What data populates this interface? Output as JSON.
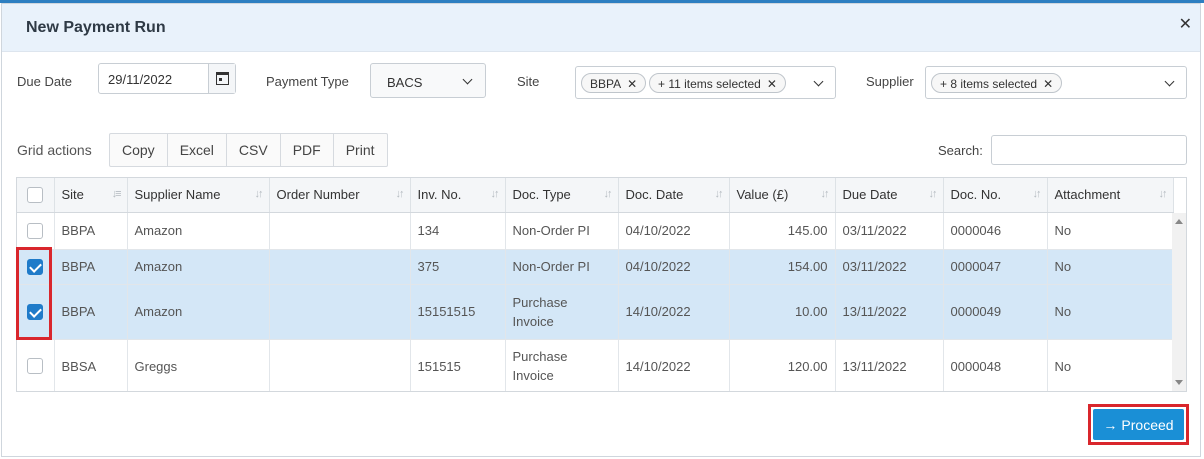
{
  "modal": {
    "title": "New Payment Run"
  },
  "filters": {
    "due_date_label": "Due Date",
    "due_date_value": "29/11/2022",
    "payment_type_label": "Payment Type",
    "payment_type_value": "BACS",
    "site_label": "Site",
    "site_tags": [
      "BBPA",
      "+ 11 items selected"
    ],
    "supplier_label": "Supplier",
    "supplier_tags": [
      "+ 8 items selected"
    ]
  },
  "grid_actions": {
    "label": "Grid actions",
    "buttons": [
      "Copy",
      "Excel",
      "CSV",
      "PDF",
      "Print"
    ],
    "search_label": "Search:"
  },
  "table": {
    "columns": [
      "Site",
      "Supplier Name",
      "Order Number",
      "Inv. No.",
      "Doc. Type",
      "Doc. Date",
      "Value (£)",
      "Due Date",
      "Doc. No.",
      "Attachment"
    ],
    "rows": [
      {
        "checked": false,
        "site": "BBPA",
        "supplier": "Amazon",
        "order": "",
        "inv": "134",
        "doc_type": "Non-Order PI",
        "doc_date": "04/10/2022",
        "value": "145.00",
        "due": "03/11/2022",
        "doc_no": "0000046",
        "attachment": "No"
      },
      {
        "checked": true,
        "site": "BBPA",
        "supplier": "Amazon",
        "order": "",
        "inv": "375",
        "doc_type": "Non-Order PI",
        "doc_date": "04/10/2022",
        "value": "154.00",
        "due": "03/11/2022",
        "doc_no": "0000047",
        "attachment": "No"
      },
      {
        "checked": true,
        "site": "BBPA",
        "supplier": "Amazon",
        "order": "",
        "inv": "15151515",
        "doc_type": "Purchase Invoice",
        "doc_date": "14/10/2022",
        "value": "10.00",
        "due": "13/11/2022",
        "doc_no": "0000049",
        "attachment": "No"
      },
      {
        "checked": false,
        "site": "BBSA",
        "supplier": "Greggs",
        "order": "",
        "inv": "151515",
        "doc_type": "Purchase Invoice",
        "doc_date": "14/10/2022",
        "value": "120.00",
        "due": "13/11/2022",
        "doc_no": "0000048",
        "attachment": "No"
      }
    ]
  },
  "footer": {
    "proceed_label": "Proceed"
  },
  "colors": {
    "accent": "#1a8fd6",
    "selected_row": "#d4e7f7",
    "highlight": "#d9262c"
  }
}
